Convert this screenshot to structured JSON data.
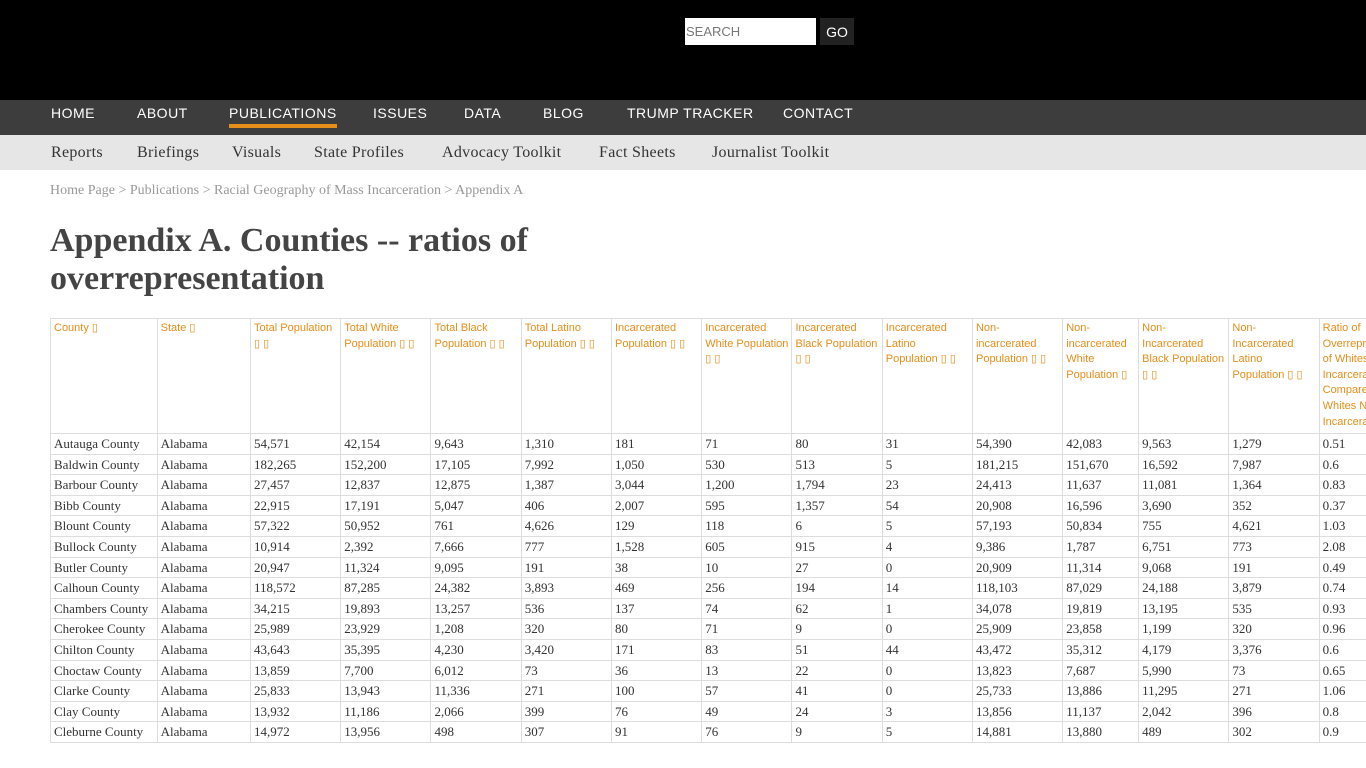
{
  "search": {
    "placeholder": "SEARCH",
    "go": "GO"
  },
  "nav": [
    "HOME",
    "ABOUT",
    "PUBLICATIONS",
    "ISSUES",
    "DATA",
    "BLOG",
    "TRUMP TRACKER",
    "CONTACT"
  ],
  "subnav": [
    "Reports",
    "Briefings",
    "Visuals",
    "State Profiles",
    "Advocacy Toolkit",
    "Fact Sheets",
    "Journalist Toolkit"
  ],
  "breadcrumb": [
    "Home Page",
    "Publications",
    "Racial Geography of Mass Incarceration",
    "Appendix A"
  ],
  "title": "Appendix A. Counties -- ratios of overrepresentation",
  "table": {
    "headers": [
      "County ▯",
      "State ▯",
      "Total Population ▯ ▯",
      "Total White Population ▯ ▯",
      "Total Black Population ▯ ▯",
      "Total Latino Population ▯ ▯",
      "Incarcerated Population ▯ ▯",
      "Incarcerated White Population ▯ ▯",
      "Incarcerated Black Population ▯ ▯",
      "Incarcerated Latino Population ▯ ▯",
      "Non-incarcerated Population ▯ ▯",
      "Non-incarcerated White Population ▯",
      "Non-Incarcerated Black Population ▯ ▯",
      "Non-Incarcerated Latino Population ▯ ▯",
      "Ratio of Overrepresentation of Whites Incarcerated Compared to Whites Non-Incarcerated ▯"
    ],
    "rows": [
      [
        "Autauga County",
        "Alabama",
        "54,571",
        "42,154",
        "9,643",
        "1,310",
        "181",
        "71",
        "80",
        "31",
        "54,390",
        "42,083",
        "9,563",
        "1,279",
        "0.51"
      ],
      [
        "Baldwin County",
        "Alabama",
        "182,265",
        "152,200",
        "17,105",
        "7,992",
        "1,050",
        "530",
        "513",
        "5",
        "181,215",
        "151,670",
        "16,592",
        "7,987",
        "0.6"
      ],
      [
        "Barbour County",
        "Alabama",
        "27,457",
        "12,837",
        "12,875",
        "1,387",
        "3,044",
        "1,200",
        "1,794",
        "23",
        "24,413",
        "11,637",
        "11,081",
        "1,364",
        "0.83"
      ],
      [
        "Bibb County",
        "Alabama",
        "22,915",
        "17,191",
        "5,047",
        "406",
        "2,007",
        "595",
        "1,357",
        "54",
        "20,908",
        "16,596",
        "3,690",
        "352",
        "0.37"
      ],
      [
        "Blount County",
        "Alabama",
        "57,322",
        "50,952",
        "761",
        "4,626",
        "129",
        "118",
        "6",
        "5",
        "57,193",
        "50,834",
        "755",
        "4,621",
        "1.03"
      ],
      [
        "Bullock County",
        "Alabama",
        "10,914",
        "2,392",
        "7,666",
        "777",
        "1,528",
        "605",
        "915",
        "4",
        "9,386",
        "1,787",
        "6,751",
        "773",
        "2.08"
      ],
      [
        "Butler County",
        "Alabama",
        "20,947",
        "11,324",
        "9,095",
        "191",
        "38",
        "10",
        "27",
        "0",
        "20,909",
        "11,314",
        "9,068",
        "191",
        "0.49"
      ],
      [
        "Calhoun County",
        "Alabama",
        "118,572",
        "87,285",
        "24,382",
        "3,893",
        "469",
        "256",
        "194",
        "14",
        "118,103",
        "87,029",
        "24,188",
        "3,879",
        "0.74"
      ],
      [
        "Chambers County",
        "Alabama",
        "34,215",
        "19,893",
        "13,257",
        "536",
        "137",
        "74",
        "62",
        "1",
        "34,078",
        "19,819",
        "13,195",
        "535",
        "0.93"
      ],
      [
        "Cherokee County",
        "Alabama",
        "25,989",
        "23,929",
        "1,208",
        "320",
        "80",
        "71",
        "9",
        "0",
        "25,909",
        "23,858",
        "1,199",
        "320",
        "0.96"
      ],
      [
        "Chilton County",
        "Alabama",
        "43,643",
        "35,395",
        "4,230",
        "3,420",
        "171",
        "83",
        "51",
        "44",
        "43,472",
        "35,312",
        "4,179",
        "3,376",
        "0.6"
      ],
      [
        "Choctaw County",
        "Alabama",
        "13,859",
        "7,700",
        "6,012",
        "73",
        "36",
        "13",
        "22",
        "0",
        "13,823",
        "7,687",
        "5,990",
        "73",
        "0.65"
      ],
      [
        "Clarke County",
        "Alabama",
        "25,833",
        "13,943",
        "11,336",
        "271",
        "100",
        "57",
        "41",
        "0",
        "25,733",
        "13,886",
        "11,295",
        "271",
        "1.06"
      ],
      [
        "Clay County",
        "Alabama",
        "13,932",
        "11,186",
        "2,066",
        "399",
        "76",
        "49",
        "24",
        "3",
        "13,856",
        "11,137",
        "2,042",
        "396",
        "0.8"
      ],
      [
        "Cleburne County",
        "Alabama",
        "14,972",
        "13,956",
        "498",
        "307",
        "91",
        "76",
        "9",
        "5",
        "14,881",
        "13,880",
        "489",
        "302",
        "0.9"
      ]
    ]
  },
  "colors": {
    "accent": "#e58e1a",
    "nav_bg": "#3d3d3d",
    "subnav_bg": "#e6e6e6"
  }
}
